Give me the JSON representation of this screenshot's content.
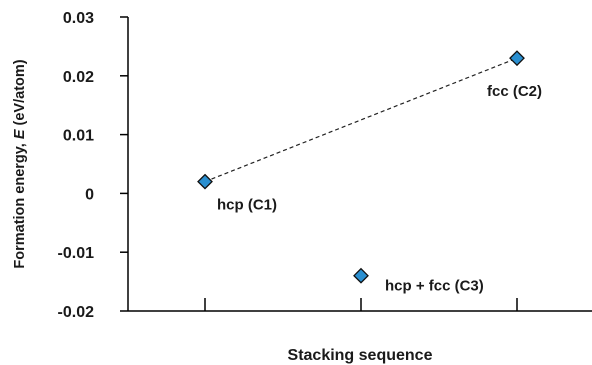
{
  "chart_data": {
    "type": "scatter",
    "xlabel": "Stacking sequence",
    "ylabel_prefix": "Formation  energy, ",
    "ylabel_symbol": "E",
    "ylabel_unit": "  (eV/atom)",
    "ylim": [
      -0.02,
      0.03
    ],
    "yticks": [
      "0.03",
      "0.02",
      "0.01",
      "0",
      "-0.01",
      "-0.02"
    ],
    "ytick_values": [
      0.03,
      0.02,
      0.01,
      0,
      -0.01,
      -0.02
    ],
    "x_categories": 3,
    "points": [
      {
        "x": 1,
        "y": 0.002,
        "label": "hcp (C1)"
      },
      {
        "x": 3,
        "y": 0.023,
        "label": "fcc (C2)"
      },
      {
        "x": 2,
        "y": -0.014,
        "label": "hcp + fcc (C3)"
      }
    ],
    "dashed_line": {
      "from_point": 0,
      "to_point": 1
    },
    "marker": "diamond",
    "marker_color": "#2a8fd0",
    "grid": false,
    "legend": "none"
  }
}
